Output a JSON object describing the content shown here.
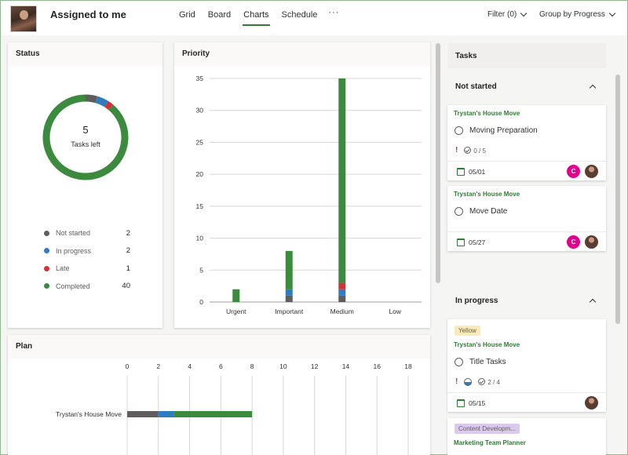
{
  "header": {
    "title": "Assigned to me",
    "tabs": [
      {
        "label": "Grid"
      },
      {
        "label": "Board"
      },
      {
        "label": "Charts",
        "active": true
      },
      {
        "label": "Schedule"
      }
    ],
    "more": "···",
    "filter_label": "Filter (0)",
    "group_label": "Group by Progress"
  },
  "status": {
    "title": "Status",
    "tasks_left_count": "5",
    "tasks_left_label": "Tasks left",
    "legend": [
      {
        "label": "Not started",
        "count": "2",
        "color": "#605e5c"
      },
      {
        "label": "In progress",
        "count": "2",
        "color": "#2f7dbf"
      },
      {
        "label": "Late",
        "count": "1",
        "color": "#d13438"
      },
      {
        "label": "Completed",
        "count": "40",
        "color": "#3b8a3e"
      }
    ]
  },
  "priority": {
    "title": "Priority"
  },
  "plan": {
    "title": "Plan"
  },
  "chart_data": [
    {
      "type": "pie",
      "labels": [
        "Not started",
        "In progress",
        "Late",
        "Completed"
      ],
      "values": [
        2,
        2,
        1,
        40
      ],
      "colors": [
        "#605e5c",
        "#2f7dbf",
        "#d13438",
        "#3b8a3e"
      ],
      "donut": true,
      "legend": "bottom"
    },
    {
      "type": "bar",
      "stacked": true,
      "categories": [
        "Urgent",
        "Important",
        "Medium",
        "Low"
      ],
      "series": [
        {
          "values": [
            0,
            1,
            1,
            0
          ],
          "color": "#605e5c"
        },
        {
          "values": [
            0,
            1,
            1,
            0
          ],
          "color": "#2f7dbf"
        },
        {
          "values": [
            0,
            0,
            1,
            0
          ],
          "color": "#d13438"
        },
        {
          "values": [
            2,
            6,
            32,
            0
          ],
          "color": "#3b8a3e"
        }
      ],
      "yticks": [
        0,
        5,
        10,
        15,
        20,
        25,
        30,
        35
      ],
      "ylim": [
        0,
        35
      ],
      "grid": true
    },
    {
      "type": "bar",
      "orientation": "horizontal",
      "stacked": true,
      "categories": [
        "Trystan's House Move"
      ],
      "series": [
        {
          "values": [
            2
          ],
          "color": "#605e5c"
        },
        {
          "values": [
            1
          ],
          "color": "#2f7dbf"
        },
        {
          "values": [
            5
          ],
          "color": "#3b8a3e"
        }
      ],
      "xticks": [
        0,
        2,
        4,
        6,
        8,
        10,
        12,
        14,
        16,
        18
      ],
      "xlim": [
        0,
        18
      ],
      "grid": true
    }
  ],
  "tasks": {
    "title": "Tasks",
    "groups": [
      {
        "label": "Not started",
        "cards": [
          {
            "plan": "Trystan's House Move",
            "title": "Moving Preparation",
            "checklist": "0 / 5",
            "date": "05/01",
            "avatar_initial": "C"
          },
          {
            "plan": "Trystan's House Move",
            "title": "Move Date",
            "date": "05/27",
            "avatar_initial": "C"
          }
        ]
      },
      {
        "label": "In progress",
        "cards": [
          {
            "label": "Yellow",
            "plan": "Trystan's House Move",
            "title": "Title Tasks",
            "checklist": "2 / 4",
            "date": "05/15"
          },
          {
            "label": "Content Developm...",
            "plan": "Marketing Team Planner"
          }
        ]
      }
    ]
  }
}
